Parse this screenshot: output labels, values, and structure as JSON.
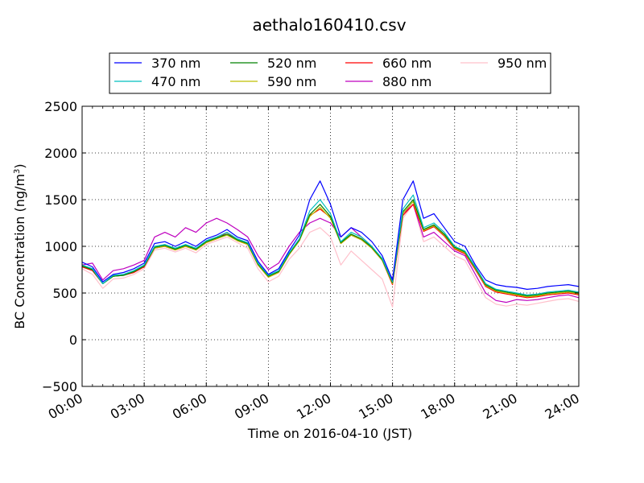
{
  "chart_data": {
    "type": "line",
    "title": "aethalo160410.csv",
    "xlabel": "Time on 2016-04-10 (JST)",
    "ylabel_main": "BC Concentration (ng/m",
    "ylabel_sup": "3",
    "ylabel_close": ")",
    "xlim": [
      "00:00",
      "24:00"
    ],
    "ylim": [
      -500,
      2500
    ],
    "x_ticks": [
      "00:00",
      "03:00",
      "06:00",
      "09:00",
      "12:00",
      "15:00",
      "18:00",
      "21:00",
      "24:00"
    ],
    "y_ticks": [
      "−500",
      "0",
      "500",
      "1000",
      "1500",
      "2000",
      "2500"
    ],
    "grid": true,
    "legend_position": "top-center",
    "x": [
      "00:00",
      "00:30",
      "01:00",
      "01:30",
      "02:00",
      "02:30",
      "03:00",
      "03:30",
      "04:00",
      "04:30",
      "05:00",
      "05:30",
      "06:00",
      "06:30",
      "07:00",
      "07:30",
      "08:00",
      "08:30",
      "09:00",
      "09:30",
      "10:00",
      "10:30",
      "11:00",
      "11:30",
      "12:00",
      "12:30",
      "13:00",
      "13:30",
      "14:00",
      "14:30",
      "15:00",
      "15:30",
      "16:00",
      "16:30",
      "17:00",
      "17:30",
      "18:00",
      "18:30",
      "19:00",
      "19:30",
      "20:00",
      "20:30",
      "21:00",
      "21:30",
      "22:00",
      "22:30",
      "23:00",
      "23:30",
      "24:00"
    ],
    "series": [
      {
        "name": "370 nm",
        "color": "#0000ff",
        "values": [
          830,
          780,
          620,
          700,
          720,
          760,
          820,
          1030,
          1050,
          1000,
          1050,
          1000,
          1080,
          1120,
          1180,
          1100,
          1060,
          840,
          700,
          760,
          950,
          1120,
          1500,
          1700,
          1450,
          1100,
          1200,
          1150,
          1050,
          900,
          640,
          1500,
          1700,
          1300,
          1350,
          1200,
          1050,
          1000,
          800,
          640,
          590,
          570,
          560,
          540,
          550,
          570,
          580,
          590,
          570
        ]
      },
      {
        "name": "470 nm",
        "color": "#00bfbf",
        "values": [
          800,
          760,
          600,
          690,
          700,
          740,
          800,
          1000,
          1020,
          980,
          1020,
          980,
          1060,
          1100,
          1150,
          1080,
          1040,
          820,
          690,
          740,
          930,
          1080,
          1380,
          1500,
          1350,
          1050,
          1150,
          1100,
          1000,
          870,
          620,
          1400,
          1550,
          1200,
          1250,
          1150,
          1000,
          950,
          780,
          600,
          540,
          520,
          500,
          480,
          490,
          510,
          520,
          530,
          510
        ]
      },
      {
        "name": "520 nm",
        "color": "#008000",
        "values": [
          790,
          750,
          600,
          680,
          690,
          730,
          790,
          990,
          1010,
          970,
          1010,
          970,
          1050,
          1090,
          1130,
          1070,
          1030,
          810,
          680,
          730,
          920,
          1070,
          1340,
          1450,
          1320,
          1040,
          1130,
          1080,
          990,
          860,
          610,
          1370,
          1500,
          1180,
          1230,
          1130,
          990,
          940,
          770,
          590,
          530,
          510,
          490,
          470,
          480,
          500,
          510,
          520,
          500
        ]
      },
      {
        "name": "590 nm",
        "color": "#bfbf00",
        "values": [
          790,
          750,
          600,
          680,
          690,
          730,
          790,
          980,
          1000,
          960,
          1000,
          960,
          1040,
          1080,
          1120,
          1060,
          1020,
          800,
          670,
          720,
          910,
          1060,
          1320,
          1420,
          1300,
          1030,
          1120,
          1070,
          980,
          850,
          600,
          1350,
          1480,
          1170,
          1220,
          1120,
          980,
          930,
          760,
          580,
          520,
          500,
          480,
          460,
          470,
          490,
          500,
          510,
          490
        ]
      },
      {
        "name": "660 nm",
        "color": "#ff0000",
        "values": [
          780,
          740,
          600,
          680,
          690,
          720,
          780,
          980,
          1000,
          960,
          1000,
          960,
          1040,
          1080,
          1150,
          1060,
          1020,
          800,
          670,
          720,
          910,
          1060,
          1330,
          1400,
          1310,
          1030,
          1120,
          1070,
          980,
          850,
          590,
          1330,
          1450,
          1160,
          1210,
          1110,
          970,
          920,
          750,
          570,
          510,
          490,
          470,
          450,
          460,
          480,
          490,
          500,
          480
        ]
      },
      {
        "name": "880 nm",
        "color": "#bf00bf",
        "values": [
          800,
          820,
          640,
          740,
          760,
          800,
          850,
          1100,
          1150,
          1100,
          1200,
          1150,
          1250,
          1300,
          1250,
          1180,
          1100,
          900,
          750,
          820,
          1000,
          1150,
          1250,
          1300,
          1250,
          1100,
          1200,
          1100,
          1000,
          850,
          650,
          1350,
          1450,
          1100,
          1150,
          1050,
          950,
          900,
          700,
          500,
          420,
          400,
          430,
          420,
          430,
          450,
          470,
          480,
          450
        ]
      },
      {
        "name": "950 nm",
        "color": "#ffc0cb",
        "values": [
          760,
          700,
          550,
          650,
          660,
          700,
          760,
          960,
          980,
          940,
          980,
          930,
          1020,
          1060,
          1100,
          1040,
          980,
          760,
          620,
          680,
          860,
          980,
          1150,
          1200,
          1100,
          800,
          950,
          850,
          750,
          650,
          350,
          1300,
          1450,
          1050,
          1100,
          1000,
          900,
          850,
          650,
          450,
          380,
          360,
          380,
          370,
          390,
          410,
          430,
          440,
          410
        ]
      }
    ]
  }
}
